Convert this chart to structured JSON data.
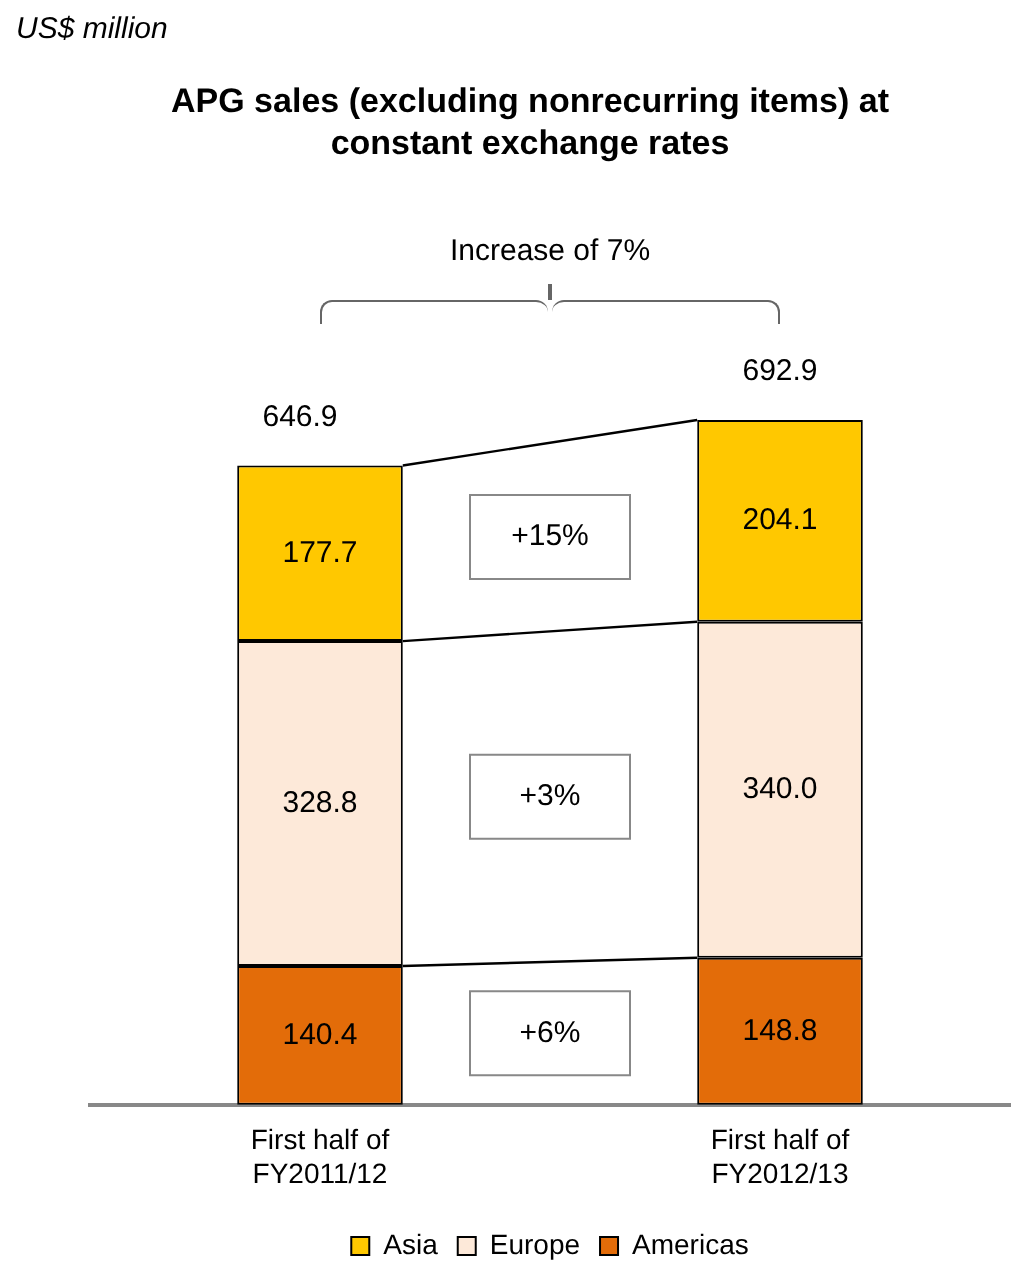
{
  "chart_data": {
    "type": "bar",
    "title": "APG sales (excluding nonrecurring items) at constant exchange rates",
    "stacked": true,
    "categories": [
      "First half of FY2011/12",
      "First half of FY2012/13"
    ],
    "series": [
      {
        "name": "Americas",
        "color": "#e36c09",
        "values": [
          140.4,
          148.8
        ],
        "value_labels": [
          "140.4",
          "148.8"
        ]
      },
      {
        "name": "Europe",
        "color": "#fde9d9",
        "values": [
          328.8,
          340.0
        ],
        "value_labels": [
          "328.8",
          "340.0"
        ]
      },
      {
        "name": "Asia",
        "color": "#ffc800",
        "values": [
          177.7,
          204.1
        ],
        "value_labels": [
          "177.7",
          "204.1"
        ]
      }
    ],
    "totals": [
      "646.9",
      "692.9"
    ],
    "annotations": [
      "US$ million",
      "Increase of 7%",
      "+6%",
      "+3%",
      "+15%"
    ],
    "legend": "bottom",
    "grid": false
  }
}
